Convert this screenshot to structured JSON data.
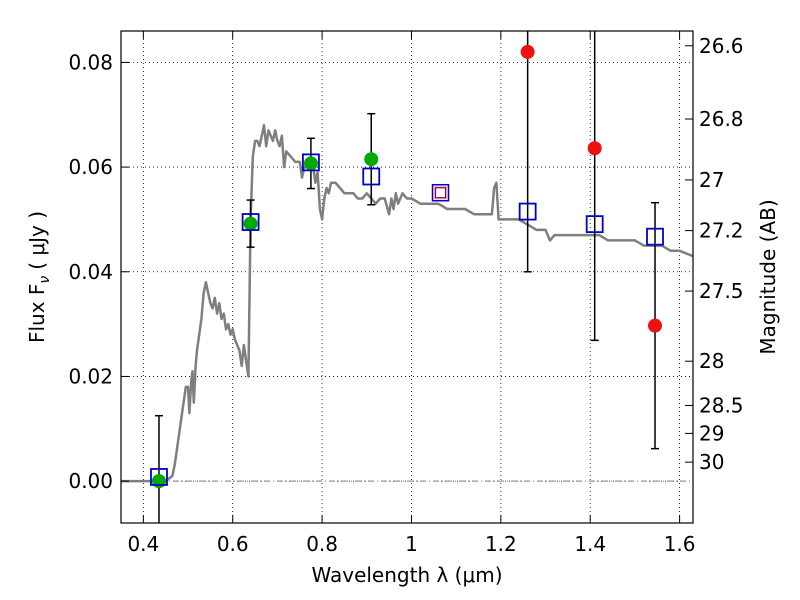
{
  "chart_data": {
    "type": "scatter",
    "xlabel": "Wavelength  λ (μm)",
    "ylabel": "Flux  F",
    "ylabel_sub": "ν",
    "ylabel_unit": "( μJy )",
    "y2label": "Magnitude (AB)",
    "xlim": [
      0.35,
      1.63
    ],
    "ylim": [
      -0.008,
      0.086
    ],
    "grid": true,
    "grid_style": "dotted",
    "x_ticks": [
      {
        "value": 0.4,
        "label": "0.4"
      },
      {
        "value": 0.6,
        "label": "0.6"
      },
      {
        "value": 0.8,
        "label": "0.8"
      },
      {
        "value": 1.0,
        "label": "1"
      },
      {
        "value": 1.2,
        "label": "1.2"
      },
      {
        "value": 1.4,
        "label": "1.4"
      },
      {
        "value": 1.6,
        "label": "1.6"
      }
    ],
    "y_ticks": [
      {
        "value": 0.0,
        "label": "0.00"
      },
      {
        "value": 0.02,
        "label": "0.02"
      },
      {
        "value": 0.04,
        "label": "0.04"
      },
      {
        "value": 0.06,
        "label": "0.06"
      },
      {
        "value": 0.08,
        "label": "0.08"
      }
    ],
    "mag_ticks": [
      {
        "value": 26.6,
        "label": "26.6"
      },
      {
        "value": 26.8,
        "label": "26.8"
      },
      {
        "value": 27.0,
        "label": "27"
      },
      {
        "value": 27.2,
        "label": "27.2"
      },
      {
        "value": 27.5,
        "label": "27.5"
      },
      {
        "value": 28.0,
        "label": "28"
      },
      {
        "value": 28.5,
        "label": "28.5"
      },
      {
        "value": 29.0,
        "label": "29"
      },
      {
        "value": 30.0,
        "label": "30"
      }
    ],
    "zero_line": {
      "y": 0.0,
      "color": "#555555",
      "style": "dashdot"
    },
    "colors": {
      "sed": "#7f7f7f",
      "model_box": "#0000cc",
      "green_point": "#00aa00",
      "red_point": "#ee1111",
      "special_box": "#8b0040",
      "special_box_inner": "#ffbbbb",
      "errorbar": "#000000"
    },
    "sed_curve": [
      [
        0.35,
        0.0
      ],
      [
        0.45,
        0.0
      ],
      [
        0.465,
        0.001
      ],
      [
        0.47,
        0.003
      ],
      [
        0.475,
        0.006
      ],
      [
        0.48,
        0.009
      ],
      [
        0.485,
        0.012
      ],
      [
        0.49,
        0.015
      ],
      [
        0.495,
        0.018
      ],
      [
        0.5,
        0.018
      ],
      [
        0.503,
        0.013
      ],
      [
        0.507,
        0.019
      ],
      [
        0.51,
        0.021
      ],
      [
        0.513,
        0.015
      ],
      [
        0.517,
        0.022
      ],
      [
        0.52,
        0.025
      ],
      [
        0.525,
        0.028
      ],
      [
        0.53,
        0.031
      ],
      [
        0.535,
        0.036
      ],
      [
        0.54,
        0.038
      ],
      [
        0.545,
        0.036
      ],
      [
        0.55,
        0.034
      ],
      [
        0.555,
        0.033
      ],
      [
        0.56,
        0.035
      ],
      [
        0.565,
        0.032
      ],
      [
        0.57,
        0.034
      ],
      [
        0.575,
        0.031
      ],
      [
        0.58,
        0.032
      ],
      [
        0.585,
        0.029
      ],
      [
        0.59,
        0.03
      ],
      [
        0.595,
        0.028
      ],
      [
        0.6,
        0.029
      ],
      [
        0.605,
        0.027
      ],
      [
        0.61,
        0.026
      ],
      [
        0.615,
        0.025
      ],
      [
        0.62,
        0.022
      ],
      [
        0.625,
        0.026
      ],
      [
        0.63,
        0.023
      ],
      [
        0.635,
        0.02
      ],
      [
        0.64,
        0.05
      ],
      [
        0.645,
        0.062
      ],
      [
        0.65,
        0.065
      ],
      [
        0.655,
        0.065
      ],
      [
        0.66,
        0.064
      ],
      [
        0.665,
        0.066
      ],
      [
        0.67,
        0.068
      ],
      [
        0.675,
        0.064
      ],
      [
        0.68,
        0.067
      ],
      [
        0.685,
        0.066
      ],
      [
        0.69,
        0.065
      ],
      [
        0.695,
        0.067
      ],
      [
        0.7,
        0.065
      ],
      [
        0.705,
        0.064
      ],
      [
        0.71,
        0.066
      ],
      [
        0.715,
        0.06
      ],
      [
        0.72,
        0.063
      ],
      [
        0.73,
        0.062
      ],
      [
        0.74,
        0.061
      ],
      [
        0.75,
        0.061
      ],
      [
        0.755,
        0.058
      ],
      [
        0.76,
        0.06
      ],
      [
        0.77,
        0.06
      ],
      [
        0.78,
        0.06
      ],
      [
        0.785,
        0.057
      ],
      [
        0.79,
        0.059
      ],
      [
        0.795,
        0.052
      ],
      [
        0.8,
        0.05
      ],
      [
        0.805,
        0.054
      ],
      [
        0.81,
        0.056
      ],
      [
        0.815,
        0.055
      ],
      [
        0.82,
        0.057
      ],
      [
        0.83,
        0.057
      ],
      [
        0.84,
        0.056
      ],
      [
        0.85,
        0.055
      ],
      [
        0.86,
        0.055
      ],
      [
        0.87,
        0.055
      ],
      [
        0.88,
        0.054
      ],
      [
        0.89,
        0.054
      ],
      [
        0.9,
        0.055
      ],
      [
        0.91,
        0.054
      ],
      [
        0.92,
        0.053
      ],
      [
        0.93,
        0.054
      ],
      [
        0.94,
        0.054
      ],
      [
        0.95,
        0.051
      ],
      [
        0.955,
        0.054
      ],
      [
        0.96,
        0.052
      ],
      [
        0.965,
        0.055
      ],
      [
        0.97,
        0.053
      ],
      [
        0.98,
        0.055
      ],
      [
        0.99,
        0.054
      ],
      [
        1.0,
        0.054
      ],
      [
        1.02,
        0.053
      ],
      [
        1.04,
        0.053
      ],
      [
        1.06,
        0.053
      ],
      [
        1.08,
        0.052
      ],
      [
        1.1,
        0.052
      ],
      [
        1.12,
        0.052
      ],
      [
        1.14,
        0.051
      ],
      [
        1.16,
        0.051
      ],
      [
        1.18,
        0.051
      ],
      [
        1.185,
        0.056
      ],
      [
        1.19,
        0.057
      ],
      [
        1.195,
        0.05
      ],
      [
        1.2,
        0.05
      ],
      [
        1.22,
        0.05
      ],
      [
        1.24,
        0.05
      ],
      [
        1.26,
        0.049
      ],
      [
        1.28,
        0.048
      ],
      [
        1.3,
        0.048
      ],
      [
        1.31,
        0.046
      ],
      [
        1.32,
        0.047
      ],
      [
        1.34,
        0.047
      ],
      [
        1.36,
        0.047
      ],
      [
        1.38,
        0.047
      ],
      [
        1.4,
        0.047
      ],
      [
        1.42,
        0.047
      ],
      [
        1.44,
        0.046
      ],
      [
        1.46,
        0.046
      ],
      [
        1.48,
        0.046
      ],
      [
        1.5,
        0.046
      ],
      [
        1.52,
        0.045
      ],
      [
        1.54,
        0.045
      ],
      [
        1.56,
        0.045
      ],
      [
        1.58,
        0.044
      ],
      [
        1.6,
        0.044
      ],
      [
        1.63,
        0.043
      ]
    ],
    "model_boxes": [
      {
        "x": 0.435,
        "y": 0.0008
      },
      {
        "x": 0.64,
        "y": 0.0495
      },
      {
        "x": 0.775,
        "y": 0.0609
      },
      {
        "x": 0.91,
        "y": 0.0582
      },
      {
        "x": 1.26,
        "y": 0.0515
      },
      {
        "x": 1.41,
        "y": 0.0491
      },
      {
        "x": 1.545,
        "y": 0.0467
      }
    ],
    "special_box": {
      "x": 1.065,
      "y": 0.0551
    },
    "observed_points": [
      {
        "x": 0.435,
        "y": 0.0,
        "yerr": 0.0125,
        "color_key": "green_point"
      },
      {
        "x": 0.64,
        "y": 0.0492,
        "yerr": 0.0045,
        "color_key": "green_point"
      },
      {
        "x": 0.775,
        "y": 0.0607,
        "yerr": 0.0048,
        "color_key": "green_point"
      },
      {
        "x": 0.91,
        "y": 0.0615,
        "yerr": 0.0087,
        "color_key": "green_point"
      },
      {
        "x": 1.26,
        "y": 0.082,
        "yerr": 0.042,
        "color_key": "red_point"
      },
      {
        "x": 1.41,
        "y": 0.0636,
        "yerr": 0.0367,
        "color_key": "red_point"
      },
      {
        "x": 1.545,
        "y": 0.0297,
        "yerr": 0.0235,
        "color_key": "red_point"
      }
    ]
  }
}
